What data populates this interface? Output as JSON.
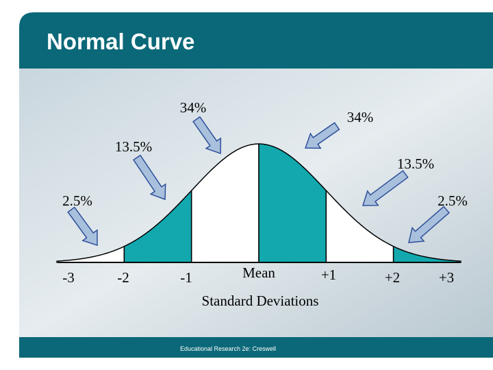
{
  "title": "Normal Curve",
  "annotations": [
    "34%",
    "34%",
    "13.5%",
    "13.5%",
    "2.5%",
    "2.5%"
  ],
  "axis_labels": [
    "-3",
    "-2",
    "-1",
    "Mean",
    "+1",
    "+2",
    "+3"
  ],
  "axis_title": "Standard Deviations",
  "footer": "Educational Research 2e:  Creswell"
}
